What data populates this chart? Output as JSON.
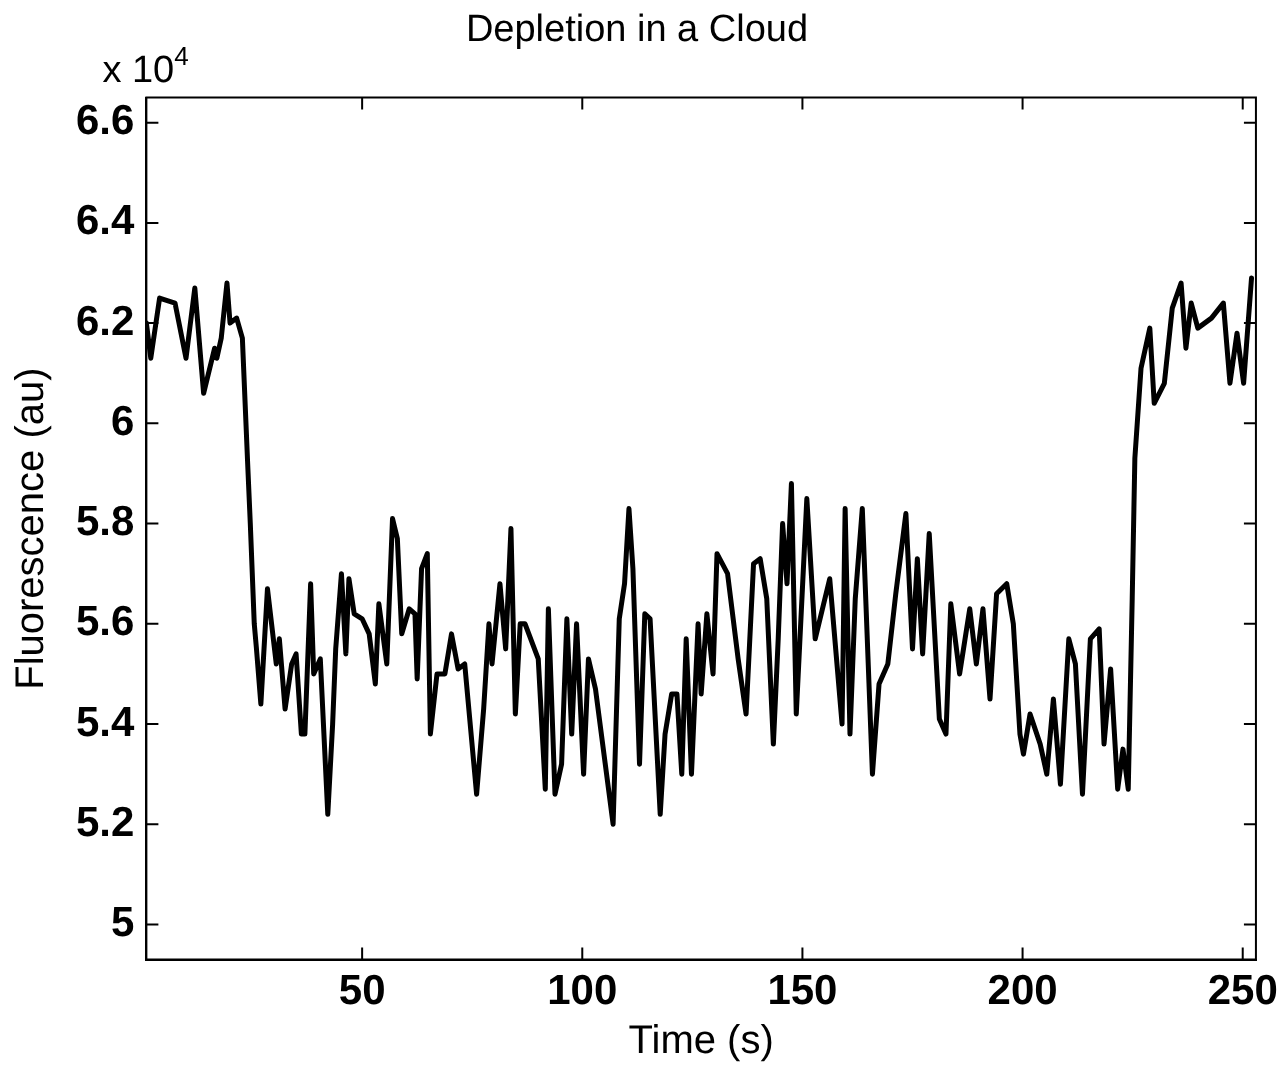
{
  "chart_data": {
    "type": "line",
    "title": "Depletion in a Cloud",
    "xlabel": "Time (s)",
    "ylabel": "Fluorescence (au)",
    "annotations": [
      "x 10$^{4}$"
    ],
    "xlim": [
      1,
      253
    ],
    "xticks": [
      50,
      100,
      150,
      200,
      250
    ],
    "ylim": [
      4.93,
      6.65
    ],
    "yticks": [
      5,
      5.2,
      5.4,
      5.6,
      5.8,
      6,
      6.2,
      6.4,
      6.6
    ],
    "grid": false,
    "legend": false,
    "marker": "none",
    "line_style": "solid",
    "series": [
      {
        "color": "#000000",
        "x": [
          1,
          2,
          4,
          7.5,
          10,
          12,
          14,
          16.5,
          17,
          18,
          19.3,
          20,
          21.5,
          22.8,
          24,
          24.6,
          25.5,
          26,
          27,
          28.5,
          30.5,
          31.2,
          32.5,
          34,
          35,
          36.2,
          37,
          38.3,
          39,
          40.5,
          42.2,
          43.3,
          44,
          45.3,
          46.3,
          47,
          48.2,
          50,
          51.6,
          53,
          53.8,
          55.6,
          56.9,
          58,
          59,
          60.7,
          62,
          62.5,
          63.5,
          64.8,
          65.5,
          67,
          68.8,
          70.3,
          71.8,
          73.3,
          76,
          77.6,
          78.8,
          79.5,
          81.3,
          82.6,
          83.8,
          84.8,
          85.9,
          87,
          90,
          91.6,
          92.3,
          93.8,
          95.3,
          96.5,
          97.6,
          98.7,
          100.3,
          101.4,
          103,
          107,
          108.4,
          109.6,
          110.6,
          111.5,
          113,
          114.2,
          115.4,
          117.7,
          118.8,
          120.3,
          121.5,
          122.6,
          123.6,
          124.8,
          126.3,
          127,
          128.3,
          129.7,
          130.6,
          133,
          135.4,
          137.2,
          138.9,
          140.4,
          141.9,
          143.4,
          144.5,
          145.5,
          146.5,
          147.5,
          148.6,
          151,
          152.9,
          156.2,
          159,
          159.7,
          160.8,
          162,
          163.6,
          165.9,
          167.4,
          169.4,
          171.2,
          173.5,
          175,
          176.1,
          177.3,
          178.8,
          181.1,
          182.6,
          183.7,
          185.7,
          188,
          189.5,
          191,
          192.6,
          194.1,
          196.4,
          197.9,
          199.4,
          200.2,
          201.7,
          204,
          205.5,
          207,
          208.6,
          210.5,
          212,
          213.6,
          215.4,
          217.4,
          218.5,
          220,
          221.6,
          222.8,
          224,
          224.9,
          225.5,
          226.9,
          228.9,
          229.9,
          232.2,
          234,
          236,
          237.1,
          238.3,
          239.8,
          242.9,
          245.6,
          247.1,
          248.7,
          250.2,
          252
        ],
        "values": [
          6.2,
          6.13,
          6.25,
          6.24,
          6.13,
          6.27,
          6.06,
          6.15,
          6.13,
          6.17,
          6.28,
          6.2,
          6.21,
          6.17,
          5.92,
          5.8,
          5.6,
          5.55,
          5.44,
          5.67,
          5.52,
          5.57,
          5.43,
          5.52,
          5.54,
          5.38,
          5.38,
          5.68,
          5.5,
          5.53,
          5.22,
          5.4,
          5.55,
          5.7,
          5.54,
          5.69,
          5.62,
          5.61,
          5.58,
          5.48,
          5.64,
          5.52,
          5.81,
          5.77,
          5.58,
          5.63,
          5.62,
          5.49,
          5.71,
          5.74,
          5.38,
          5.5,
          5.5,
          5.58,
          5.51,
          5.52,
          5.26,
          5.43,
          5.6,
          5.52,
          5.68,
          5.55,
          5.79,
          5.42,
          5.6,
          5.6,
          5.53,
          5.27,
          5.63,
          5.26,
          5.32,
          5.61,
          5.38,
          5.6,
          5.3,
          5.53,
          5.47,
          5.2,
          5.61,
          5.68,
          5.83,
          5.71,
          5.32,
          5.62,
          5.61,
          5.22,
          5.38,
          5.46,
          5.46,
          5.3,
          5.57,
          5.3,
          5.6,
          5.46,
          5.62,
          5.5,
          5.74,
          5.7,
          5.53,
          5.42,
          5.72,
          5.73,
          5.65,
          5.36,
          5.57,
          5.8,
          5.68,
          5.88,
          5.42,
          5.85,
          5.57,
          5.69,
          5.4,
          5.83,
          5.38,
          5.65,
          5.83,
          5.3,
          5.48,
          5.52,
          5.66,
          5.82,
          5.55,
          5.73,
          5.54,
          5.78,
          5.41,
          5.38,
          5.64,
          5.5,
          5.63,
          5.52,
          5.63,
          5.45,
          5.66,
          5.68,
          5.6,
          5.38,
          5.34,
          5.42,
          5.36,
          5.3,
          5.45,
          5.28,
          5.57,
          5.52,
          5.26,
          5.57,
          5.59,
          5.36,
          5.51,
          5.27,
          5.35,
          5.27,
          5.65,
          5.93,
          6.11,
          6.19,
          6.04,
          6.08,
          6.23,
          6.28,
          6.15,
          6.24,
          6.19,
          6.21,
          6.24,
          6.08,
          6.18,
          6.08,
          6.29
        ]
      }
    ]
  }
}
